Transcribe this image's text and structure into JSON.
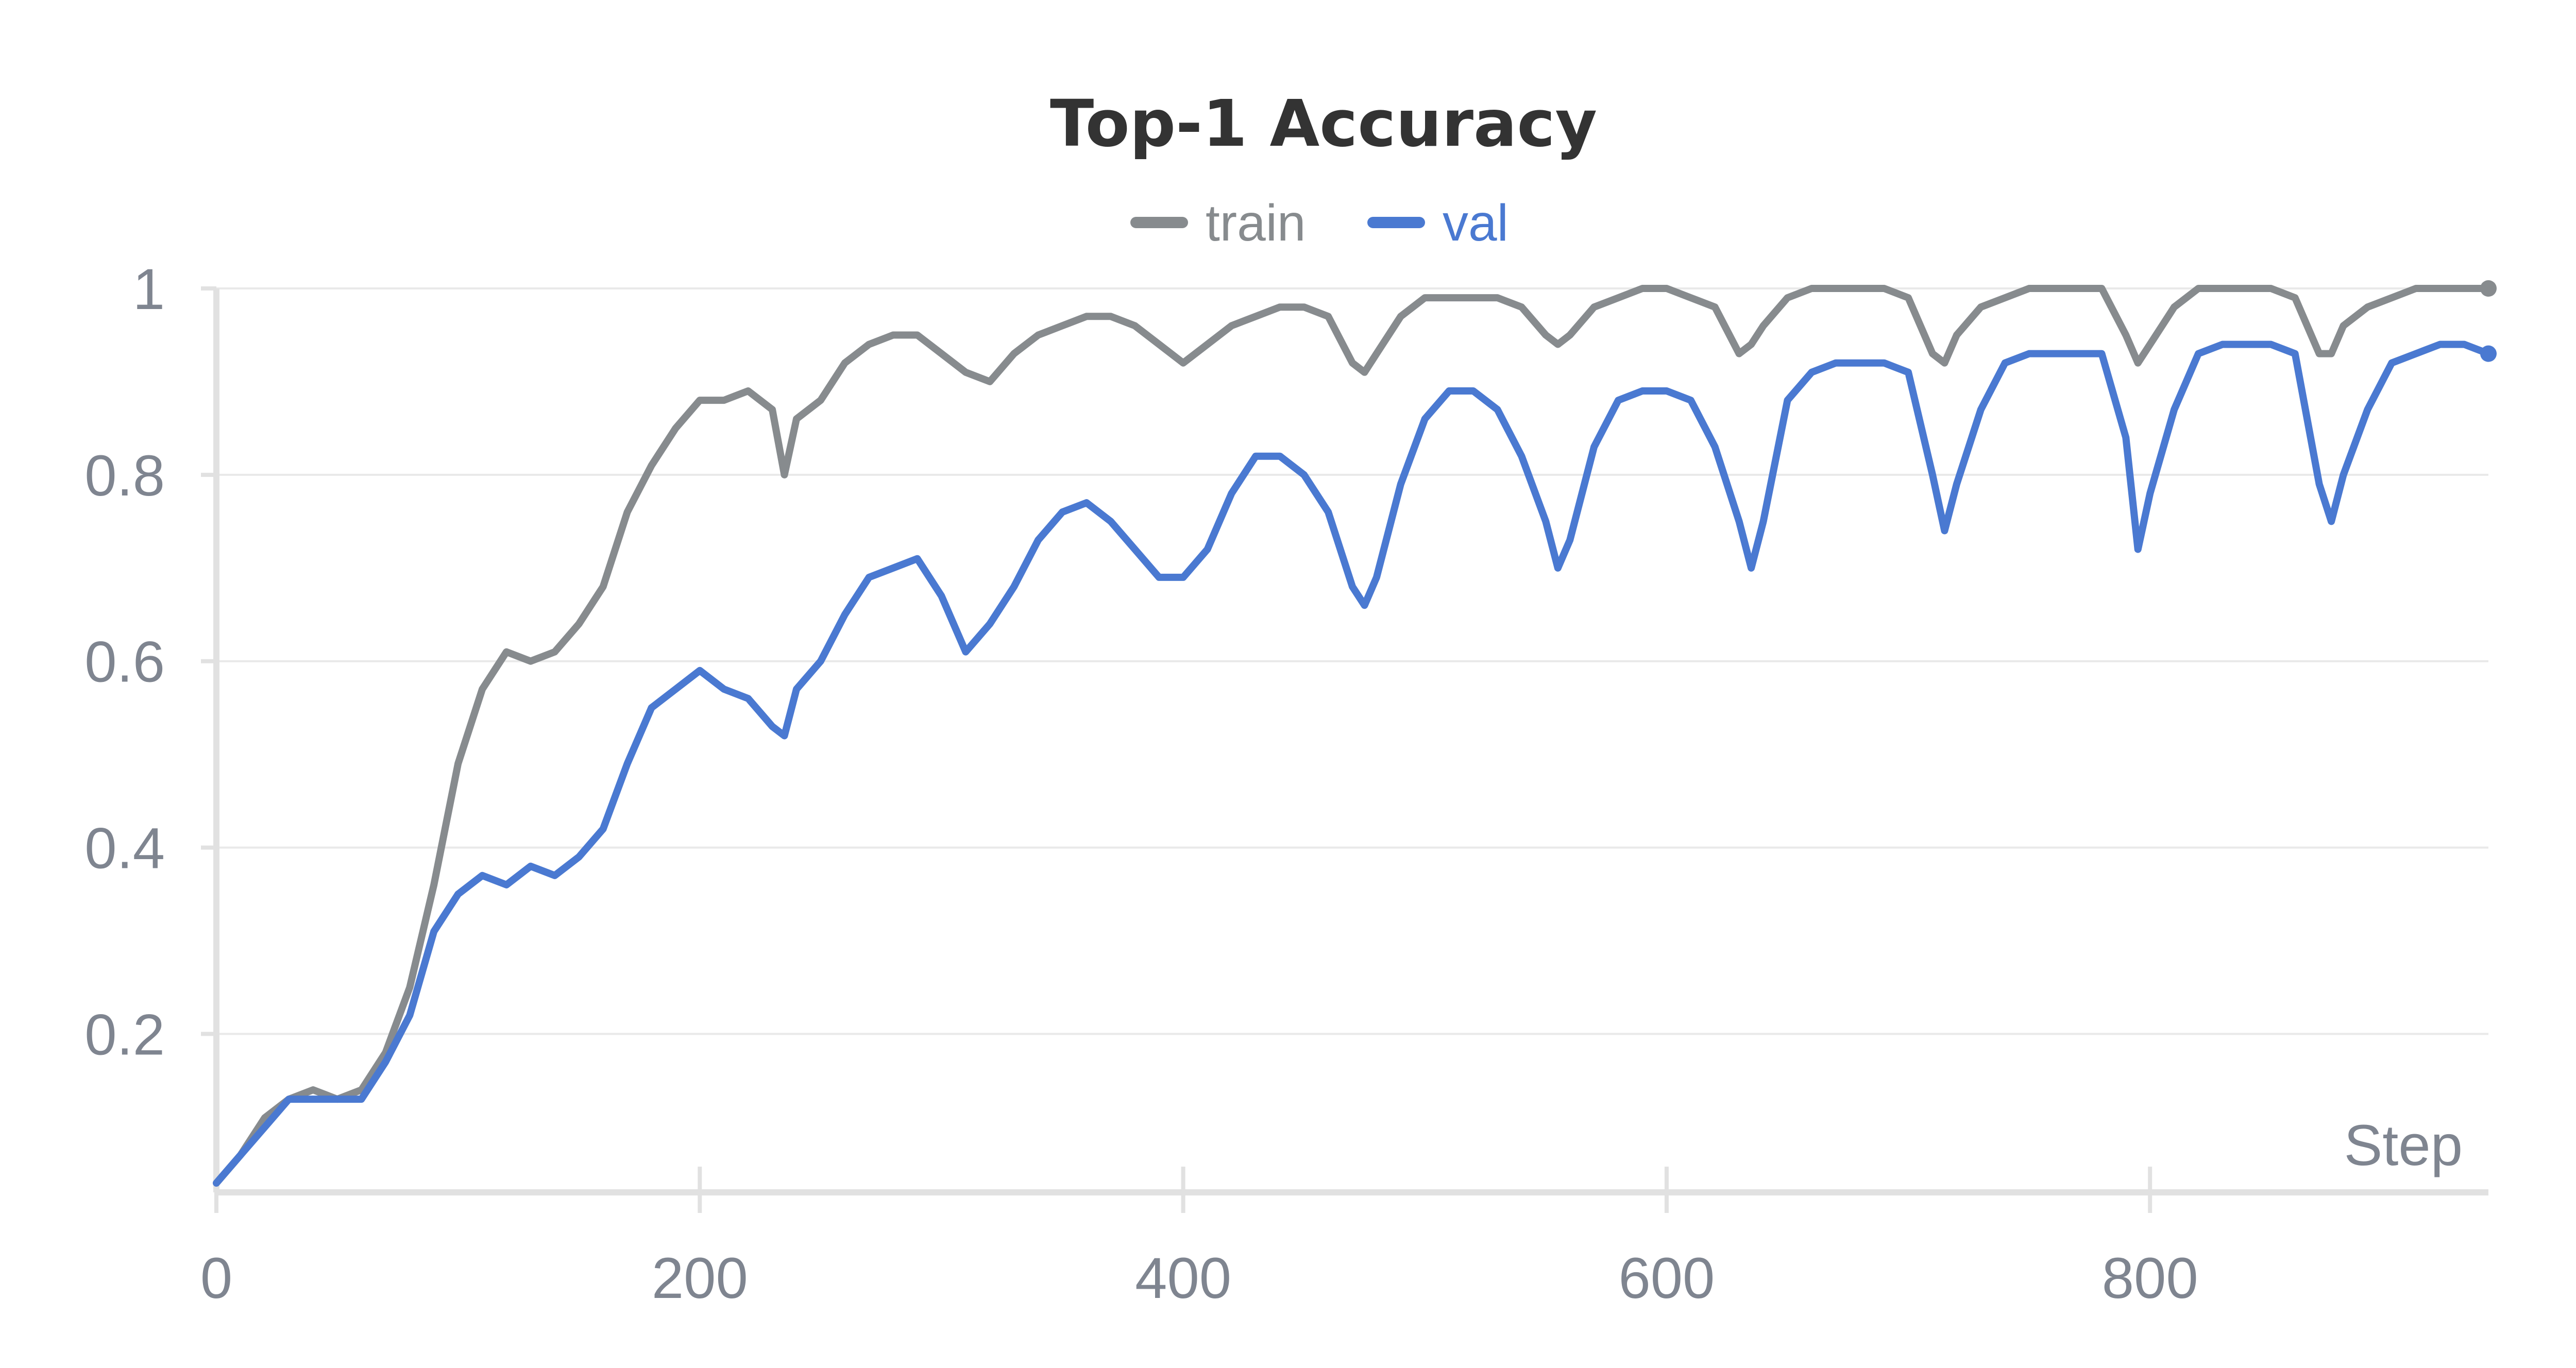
{
  "chart_data": {
    "type": "line",
    "title": "Top-1 Accuracy",
    "xlabel": "Step",
    "ylabel": "",
    "xlim": [
      0,
      940
    ],
    "ylim": [
      0.03,
      1.0
    ],
    "x_ticks": [
      0,
      200,
      400,
      600,
      800
    ],
    "y_ticks": [
      0.2,
      0.4,
      0.6,
      0.8,
      1
    ],
    "y_tick_labels": [
      "0.2",
      "0.4",
      "0.6",
      "0.8",
      "1"
    ],
    "x_tick_labels": [
      "0",
      "200",
      "400",
      "600",
      "800"
    ],
    "grid": true,
    "legend_position": "top-center",
    "series": [
      {
        "name": "train",
        "color": "#878b8e",
        "x": [
          0,
          10,
          20,
          30,
          40,
          50,
          60,
          70,
          80,
          90,
          100,
          110,
          120,
          130,
          140,
          150,
          160,
          170,
          180,
          190,
          200,
          210,
          220,
          230,
          235,
          240,
          250,
          260,
          270,
          280,
          290,
          300,
          310,
          320,
          330,
          340,
          350,
          360,
          370,
          380,
          390,
          400,
          410,
          420,
          430,
          440,
          450,
          460,
          470,
          475,
          480,
          490,
          500,
          510,
          520,
          530,
          540,
          550,
          555,
          560,
          570,
          580,
          590,
          600,
          610,
          620,
          630,
          635,
          640,
          650,
          660,
          670,
          680,
          690,
          700,
          710,
          715,
          720,
          730,
          740,
          750,
          760,
          770,
          780,
          790,
          795,
          800,
          810,
          820,
          830,
          840,
          850,
          860,
          870,
          875,
          880,
          890,
          900,
          910,
          920,
          930,
          940
        ],
        "values": [
          0.04,
          0.07,
          0.11,
          0.13,
          0.14,
          0.13,
          0.14,
          0.18,
          0.25,
          0.36,
          0.49,
          0.57,
          0.61,
          0.6,
          0.61,
          0.64,
          0.68,
          0.76,
          0.81,
          0.85,
          0.88,
          0.88,
          0.89,
          0.87,
          0.8,
          0.86,
          0.88,
          0.92,
          0.94,
          0.95,
          0.95,
          0.93,
          0.91,
          0.9,
          0.93,
          0.95,
          0.96,
          0.97,
          0.97,
          0.96,
          0.94,
          0.92,
          0.94,
          0.96,
          0.97,
          0.98,
          0.98,
          0.97,
          0.92,
          0.91,
          0.93,
          0.97,
          0.99,
          0.99,
          0.99,
          0.99,
          0.98,
          0.95,
          0.94,
          0.95,
          0.98,
          0.99,
          1.0,
          1.0,
          0.99,
          0.98,
          0.93,
          0.94,
          0.96,
          0.99,
          1.0,
          1.0,
          1.0,
          1.0,
          0.99,
          0.93,
          0.92,
          0.95,
          0.98,
          0.99,
          1.0,
          1.0,
          1.0,
          1.0,
          0.95,
          0.92,
          0.94,
          0.98,
          1.0,
          1.0,
          1.0,
          1.0,
          0.99,
          0.93,
          0.93,
          0.96,
          0.98,
          0.99,
          1.0,
          1.0,
          1.0,
          1.0
        ]
      },
      {
        "name": "val",
        "color": "#4a79d1",
        "x": [
          0,
          10,
          20,
          30,
          40,
          50,
          60,
          70,
          80,
          90,
          100,
          110,
          120,
          130,
          140,
          150,
          160,
          170,
          180,
          190,
          200,
          210,
          220,
          230,
          235,
          240,
          250,
          260,
          270,
          280,
          290,
          300,
          310,
          320,
          330,
          340,
          350,
          360,
          370,
          380,
          390,
          400,
          410,
          420,
          430,
          440,
          450,
          460,
          470,
          475,
          480,
          490,
          500,
          510,
          520,
          530,
          540,
          550,
          555,
          560,
          570,
          580,
          590,
          600,
          610,
          620,
          630,
          635,
          640,
          650,
          660,
          670,
          680,
          690,
          700,
          710,
          715,
          720,
          730,
          740,
          750,
          760,
          770,
          780,
          790,
          795,
          800,
          810,
          820,
          830,
          840,
          850,
          860,
          870,
          875,
          880,
          890,
          900,
          910,
          920,
          930,
          940
        ],
        "values": [
          0.04,
          0.07,
          0.1,
          0.13,
          0.13,
          0.13,
          0.13,
          0.17,
          0.22,
          0.31,
          0.35,
          0.37,
          0.36,
          0.38,
          0.37,
          0.39,
          0.42,
          0.49,
          0.55,
          0.57,
          0.59,
          0.57,
          0.56,
          0.53,
          0.52,
          0.57,
          0.6,
          0.65,
          0.69,
          0.7,
          0.71,
          0.67,
          0.61,
          0.64,
          0.68,
          0.73,
          0.76,
          0.77,
          0.75,
          0.72,
          0.69,
          0.69,
          0.72,
          0.78,
          0.82,
          0.82,
          0.8,
          0.76,
          0.68,
          0.66,
          0.69,
          0.79,
          0.86,
          0.89,
          0.89,
          0.87,
          0.82,
          0.75,
          0.7,
          0.73,
          0.83,
          0.88,
          0.89,
          0.89,
          0.88,
          0.83,
          0.75,
          0.7,
          0.75,
          0.88,
          0.91,
          0.92,
          0.92,
          0.92,
          0.91,
          0.8,
          0.74,
          0.79,
          0.87,
          0.92,
          0.93,
          0.93,
          0.93,
          0.93,
          0.84,
          0.72,
          0.78,
          0.87,
          0.93,
          0.94,
          0.94,
          0.94,
          0.93,
          0.79,
          0.75,
          0.8,
          0.87,
          0.92,
          0.93,
          0.94,
          0.94,
          0.93
        ]
      }
    ]
  }
}
